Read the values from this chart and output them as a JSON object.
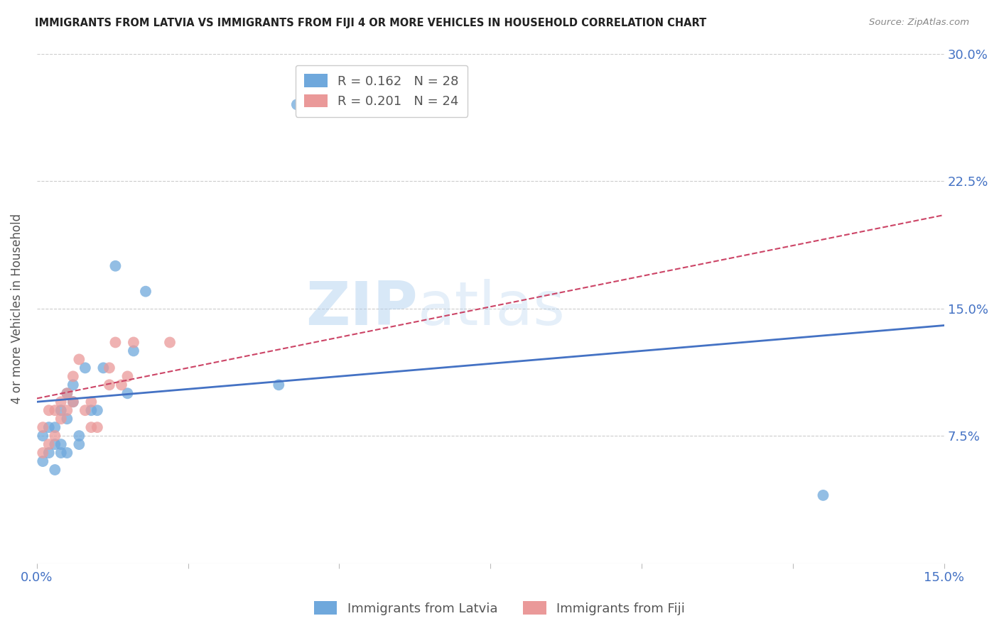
{
  "title": "IMMIGRANTS FROM LATVIA VS IMMIGRANTS FROM FIJI 4 OR MORE VEHICLES IN HOUSEHOLD CORRELATION CHART",
  "source": "Source: ZipAtlas.com",
  "ylabel": "4 or more Vehicles in Household",
  "xlim": [
    0.0,
    0.15
  ],
  "ylim": [
    0.0,
    0.3
  ],
  "ytick_vals": [
    0.075,
    0.15,
    0.225,
    0.3
  ],
  "ytick_labels": [
    "7.5%",
    "15.0%",
    "22.5%",
    "30.0%"
  ],
  "color_latvia": "#6fa8dc",
  "color_fiji": "#ea9999",
  "line_color_latvia": "#4472c4",
  "line_color_fiji": "#cc4466",
  "tick_color": "#4472c4",
  "watermark_part1": "ZIP",
  "watermark_part2": "atlas",
  "latvia_x": [
    0.001,
    0.001,
    0.002,
    0.002,
    0.003,
    0.003,
    0.003,
    0.004,
    0.004,
    0.004,
    0.005,
    0.005,
    0.005,
    0.006,
    0.006,
    0.007,
    0.007,
    0.008,
    0.009,
    0.01,
    0.011,
    0.013,
    0.015,
    0.016,
    0.018,
    0.04,
    0.043,
    0.13
  ],
  "latvia_y": [
    0.06,
    0.075,
    0.065,
    0.08,
    0.055,
    0.07,
    0.08,
    0.065,
    0.07,
    0.09,
    0.065,
    0.085,
    0.1,
    0.095,
    0.105,
    0.07,
    0.075,
    0.115,
    0.09,
    0.09,
    0.115,
    0.175,
    0.1,
    0.125,
    0.16,
    0.105,
    0.27,
    0.04
  ],
  "fiji_x": [
    0.001,
    0.001,
    0.002,
    0.002,
    0.003,
    0.003,
    0.004,
    0.004,
    0.005,
    0.005,
    0.006,
    0.006,
    0.007,
    0.008,
    0.009,
    0.009,
    0.01,
    0.012,
    0.012,
    0.013,
    0.014,
    0.015,
    0.016,
    0.022
  ],
  "fiji_y": [
    0.065,
    0.08,
    0.07,
    0.09,
    0.075,
    0.09,
    0.085,
    0.095,
    0.09,
    0.1,
    0.095,
    0.11,
    0.12,
    0.09,
    0.08,
    0.095,
    0.08,
    0.105,
    0.115,
    0.13,
    0.105,
    0.11,
    0.13,
    0.13
  ],
  "r_latvia": 0.162,
  "n_latvia": 28,
  "r_fiji": 0.201,
  "n_fiji": 24,
  "latvia_line_x0": 0.0,
  "latvia_line_y0": 0.095,
  "latvia_line_x1": 0.15,
  "latvia_line_y1": 0.14,
  "fiji_line_x0": 0.0,
  "fiji_line_y0": 0.097,
  "fiji_line_x1": 0.15,
  "fiji_line_y1": 0.205
}
